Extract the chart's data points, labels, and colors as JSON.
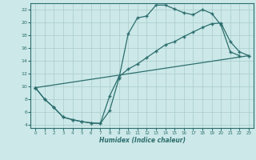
{
  "xlabel": "Humidex (Indice chaleur)",
  "background_color": "#cce8e8",
  "grid_color": "#aacccc",
  "line_color": "#2d6e6e",
  "xlim": [
    -0.5,
    23.5
  ],
  "ylim": [
    3.5,
    23.0
  ],
  "xticks": [
    0,
    1,
    2,
    3,
    4,
    5,
    6,
    7,
    8,
    9,
    10,
    11,
    12,
    13,
    14,
    15,
    16,
    17,
    18,
    19,
    20,
    21,
    22,
    23
  ],
  "yticks": [
    4,
    6,
    8,
    10,
    12,
    14,
    16,
    18,
    20,
    22
  ],
  "line1_x": [
    0,
    1,
    2,
    3,
    4,
    5,
    6,
    7,
    8,
    9,
    10,
    11,
    12,
    13,
    14,
    15,
    16,
    17,
    18,
    19,
    20,
    21,
    22
  ],
  "line1_y": [
    9.8,
    8.0,
    6.7,
    5.2,
    4.8,
    4.5,
    4.3,
    4.2,
    6.2,
    11.2,
    18.2,
    20.7,
    21.0,
    22.7,
    22.7,
    22.1,
    21.5,
    21.2,
    22.0,
    21.4,
    19.6,
    15.4,
    14.8
  ],
  "line2_x": [
    0,
    1,
    2,
    3,
    4,
    5,
    6,
    7,
    8,
    9,
    10,
    11,
    12,
    13,
    14,
    15,
    16,
    17,
    18,
    19,
    20,
    21,
    22,
    23
  ],
  "line2_y": [
    9.8,
    8.0,
    6.7,
    5.2,
    4.8,
    4.5,
    4.3,
    4.2,
    8.5,
    11.5,
    12.7,
    13.5,
    14.5,
    15.5,
    16.5,
    17.0,
    17.8,
    18.5,
    19.2,
    19.8,
    19.9,
    17.0,
    15.4,
    14.8
  ],
  "line3_x": [
    0,
    23
  ],
  "line3_y": [
    9.8,
    14.8
  ]
}
